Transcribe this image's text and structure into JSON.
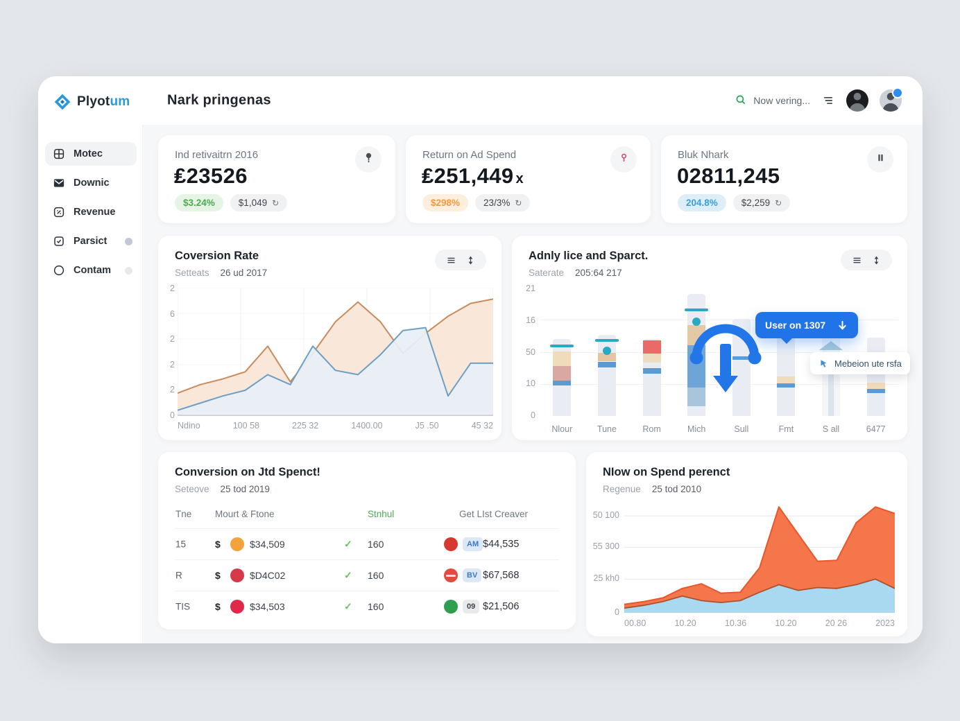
{
  "app": {
    "name": "Plyotum",
    "logo_primary": "Plyot",
    "logo_accent": "um",
    "accent_color": "#2b99dc"
  },
  "header": {
    "title": "Nark pringenas",
    "search_text": "Now vering..."
  },
  "sidebar": {
    "items": [
      {
        "label": "Motec",
        "icon": "dashboard-icon",
        "active": true,
        "badge": null
      },
      {
        "label": "Downic",
        "icon": "mail-icon",
        "active": false,
        "badge": null
      },
      {
        "label": "Revenue",
        "icon": "receipt-icon",
        "active": false,
        "badge": null
      },
      {
        "label": "Parsict",
        "icon": "task-icon",
        "active": false,
        "badge": "strong"
      },
      {
        "label": "Contam",
        "icon": "circle-icon",
        "active": false,
        "badge": "faint"
      }
    ]
  },
  "kpis": [
    {
      "title": "Ind retivaitrn 2016",
      "value": "₤23526",
      "value_suffix": "",
      "badge_text": "$3.24%",
      "badge_theme": "green",
      "pill_text": "$1,049",
      "pill_icon": "↻",
      "icon": "pin-icon"
    },
    {
      "title": "Return on Ad Spend",
      "value": "₤251,449",
      "value_suffix": "x",
      "badge_text": "$298%",
      "badge_theme": "orange",
      "pill_text": "23/3%",
      "pill_icon": "↻",
      "icon": "location-icon"
    },
    {
      "title": "Bluk Nhark",
      "value": "02811,245",
      "value_suffix": "",
      "badge_text": "204.8%",
      "badge_theme": "blue",
      "pill_text": "$2,259",
      "pill_icon": "↻",
      "icon": "pause-icon"
    }
  ],
  "chart_data": [
    {
      "id": "conversion_rate",
      "type": "area",
      "title": "Coversion Rate",
      "subtitle_label": "Setteats",
      "subtitle_value": "26 ud 2017",
      "x_ticks": [
        "Ndino",
        "100 58",
        "225 32",
        "1400.00",
        "J5 .50",
        "45 32"
      ],
      "y_ticks": [
        "2",
        "6",
        "2",
        "2",
        "2",
        "0"
      ],
      "ylim": [
        0,
        9
      ],
      "grid": true,
      "legend": "none",
      "series": [
        {
          "name": "orange",
          "color": "#c98a5e",
          "fill": "#f9e7d8",
          "values": [
            1.6,
            2.2,
            2.6,
            3.1,
            4.9,
            2.4,
            4.4,
            6.6,
            8.0,
            6.6,
            4.4,
            5.8,
            7.0,
            7.9,
            8.2
          ]
        },
        {
          "name": "blue",
          "color": "#6e9ec4",
          "fill": "#e7eff7",
          "values": [
            0.4,
            0.9,
            1.4,
            1.8,
            2.9,
            2.2,
            4.9,
            3.2,
            2.9,
            4.3,
            6.0,
            6.2,
            1.4,
            3.7,
            3.7
          ]
        }
      ]
    },
    {
      "id": "adnly_spend",
      "type": "bar",
      "title": "Adnly lice and Sparct.",
      "subtitle_label": "Saterate",
      "subtitle_value": "205:64 217",
      "y_ticks": [
        "21",
        "16",
        "50",
        "10",
        "0"
      ],
      "ylim": [
        0,
        21
      ],
      "grid": true,
      "legend": "none",
      "bars": [
        {
          "label": "Nlour",
          "bg": 12.6,
          "cap": 11.2,
          "dot": null,
          "segments": [
            {
              "color": "#f0dcbb",
              "from": 8.2,
              "to": 10.6
            },
            {
              "color": "#d9a8a2",
              "from": 5.8,
              "to": 8.2
            },
            {
              "color": "#5b9bd5",
              "from": 5.0,
              "to": 5.8
            }
          ]
        },
        {
          "label": "Tune",
          "bg": 13.3,
          "cap": 12.2,
          "dot": 10.7,
          "segments": [
            {
              "color": "#e6c6a2",
              "from": 9.0,
              "to": 10.3
            },
            {
              "color": "#5b9bd5",
              "from": 7.9,
              "to": 8.8
            }
          ]
        },
        {
          "label": "Rom",
          "bg": 12.6,
          "cap": null,
          "dot": null,
          "segments": [
            {
              "color": "#e96a67",
              "from": 10.2,
              "to": 12.4
            },
            {
              "color": "#efdcc0",
              "from": 8.7,
              "to": 10.2
            },
            {
              "color": "#5b9bd5",
              "from": 6.9,
              "to": 7.8
            }
          ]
        },
        {
          "label": "Mich",
          "bg": 20.0,
          "cap": 17.1,
          "dot": 15.4,
          "segments": [
            {
              "color": "#e3c9a6",
              "from": 11.6,
              "to": 14.9
            },
            {
              "color": "#6fa4d8",
              "from": 4.6,
              "to": 11.6
            },
            {
              "color": "#a9c4dd",
              "from": 1.6,
              "to": 4.6
            }
          ]
        },
        {
          "label": "Sull",
          "bg": 15.9,
          "cap": null,
          "dot": null,
          "segments": [
            {
              "color": "#5b9bd5",
              "from": 9.2,
              "to": 9.8
            }
          ]
        },
        {
          "label": "Fmt",
          "bg": 16.0,
          "cap": null,
          "dot": null,
          "segments": [
            {
              "color": "#f0dcbb",
              "from": 5.3,
              "to": 6.5
            },
            {
              "color": "#5b9bd5",
              "from": 4.6,
              "to": 5.3
            }
          ]
        },
        {
          "label": "S all",
          "bg": 17.0,
          "cap": null,
          "dot": null,
          "marker": "tent",
          "marker_at": 10.8,
          "segments": []
        },
        {
          "label": "6477",
          "bg": 12.8,
          "cap": null,
          "dot": null,
          "segments": [
            {
              "color": "#f0dcbb",
              "from": 4.4,
              "to": 5.4
            },
            {
              "color": "#5b9bd5",
              "from": 3.8,
              "to": 4.4
            }
          ]
        }
      ],
      "tooltip_primary": {
        "text": "User on 1307",
        "icon": "down-arrow-icon"
      },
      "tooltip_secondary": {
        "text": "Mebeion ute rsfa",
        "icon": "cursor-icon"
      }
    },
    {
      "id": "spend_percent",
      "type": "area",
      "title": "NIow on Spend perenct",
      "subtitle_label": "Regenue",
      "subtitle_value": "25 tod 2010",
      "x_ticks": [
        "00.80",
        "10.20",
        "10.36",
        "10.20",
        "20 26",
        "2023"
      ],
      "y_ticks": [
        "50 100",
        "55 300",
        "25 kh0",
        "0"
      ],
      "y_tick_values": [
        103.5,
        70,
        36,
        0
      ],
      "ylim": [
        0,
        125
      ],
      "grid": true,
      "legend": "none",
      "series": [
        {
          "name": "orange",
          "color": "#e8572b",
          "fill": "#f4764a",
          "values": [
            9,
            12,
            16,
            26,
            31,
            21,
            22,
            48,
            113,
            84,
            55,
            56,
            96,
            113,
            106
          ]
        },
        {
          "name": "blue",
          "color": "#a8532f",
          "fill": "#a9d9f0",
          "values": [
            5,
            8,
            12,
            18,
            13,
            11,
            13,
            22,
            30,
            24,
            27,
            26,
            30,
            36,
            26
          ]
        }
      ]
    }
  ],
  "table": {
    "title": "Conversion on Jtd Spenct!",
    "subtitle_label": "Seteove",
    "subtitle_value": "25 tod 2019",
    "columns": [
      "Tne",
      "Mourt & Ftone",
      "Stnhul",
      "Get LIst Creaver"
    ],
    "rows": [
      {
        "id": "15",
        "currency": "$",
        "icon_color": "#f2a33c",
        "amount": "$34,509",
        "check": "✓",
        "status": "160",
        "icon2_color": "#d6392f",
        "icon2_striped": false,
        "chip": "AM",
        "chip_theme": "blue",
        "value": "$44,535"
      },
      {
        "id": "R",
        "currency": "$",
        "icon_color": "#d63a4a",
        "amount": "$D4C02",
        "check": "✓",
        "status": "160",
        "icon2_color": "#e04a3f",
        "icon2_striped": true,
        "chip": "BV",
        "chip_theme": "blue",
        "value": "$67,568"
      },
      {
        "id": "TIS",
        "currency": "$",
        "icon_color": "#e0284a",
        "amount": "$34,503",
        "check": "✓",
        "status": "160",
        "icon2_color": "#2e9e4f",
        "icon2_striped": false,
        "chip": "09",
        "chip_theme": "gray",
        "value": "$21,506"
      }
    ]
  }
}
